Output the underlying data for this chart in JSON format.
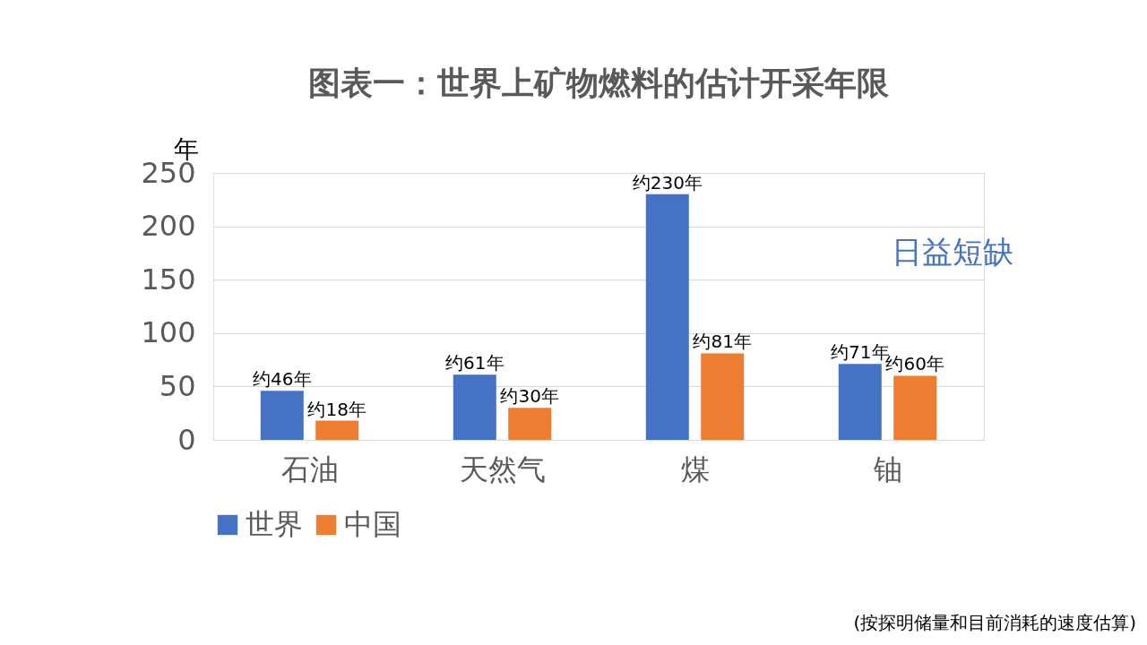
{
  "chart_data": {
    "type": "bar",
    "title": "图表一：世界上矿物燃料的估计开采年限",
    "ylabel": "年",
    "categories": [
      "石油",
      "天然气",
      "煤",
      "铀"
    ],
    "series": [
      {
        "name": "世界",
        "color": "#4472c4",
        "values": [
          46,
          61,
          230,
          71
        ],
        "value_labels": [
          "约46年",
          "约61年",
          "约230年",
          "约71年"
        ]
      },
      {
        "name": "中国",
        "color": "#ed7d31",
        "values": [
          18,
          30,
          81,
          60
        ],
        "value_labels": [
          "约18年",
          "约30年",
          "约81年",
          "约60年"
        ]
      }
    ],
    "ylim": [
      0,
      250
    ],
    "yticks": [
      0,
      50,
      100,
      150,
      200,
      250
    ],
    "grid": "y",
    "legend": "bottom",
    "annotations": [
      "日益短缺",
      "(按探明储量和目前消耗的速度估算)"
    ]
  }
}
